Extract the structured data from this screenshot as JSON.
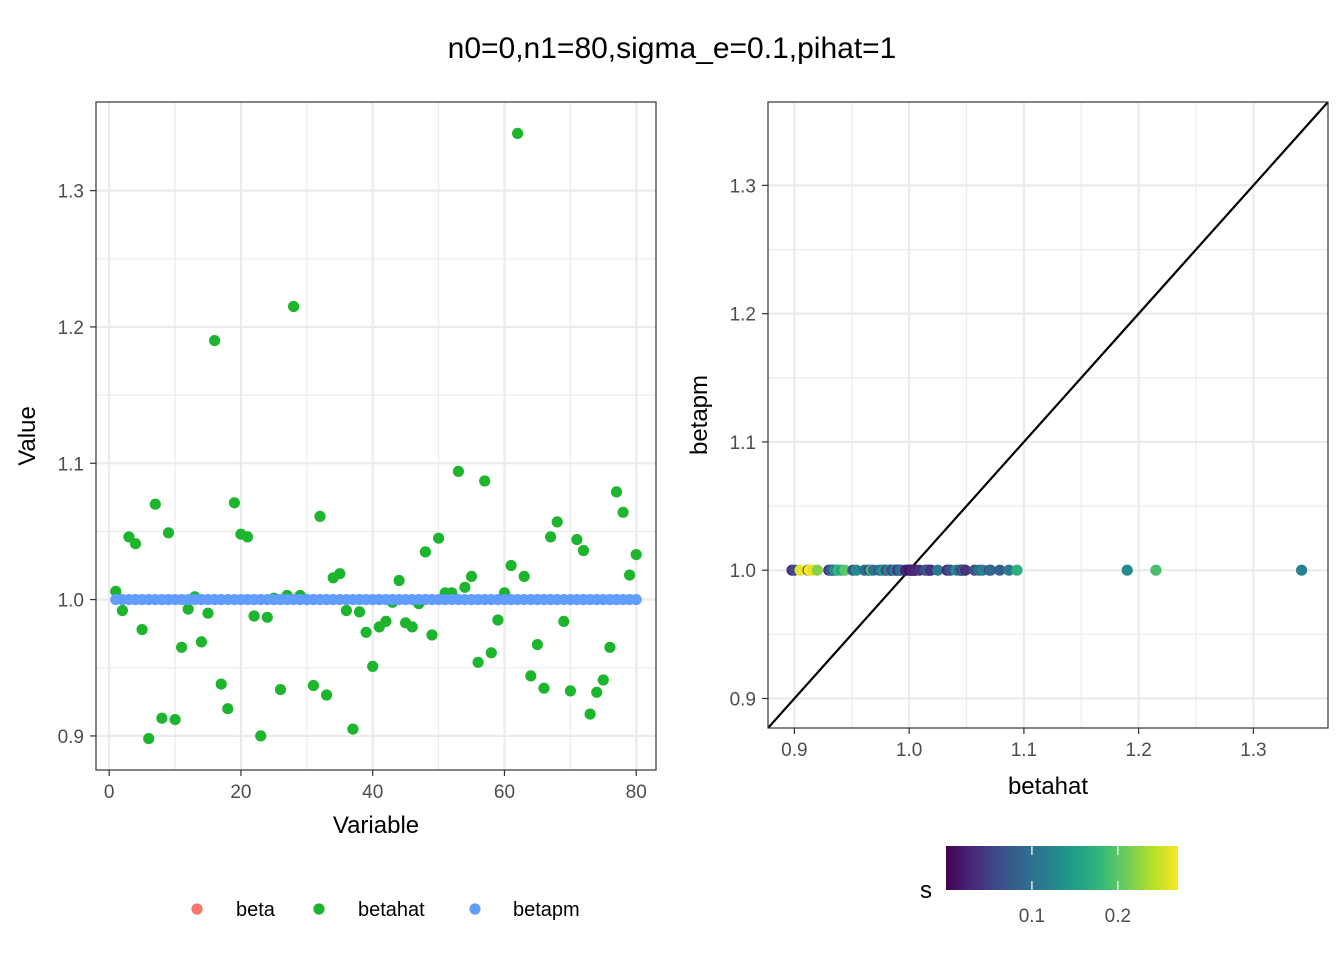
{
  "title": "n0=0,n1=80,sigma_e=0.1,pihat=1",
  "colors": {
    "beta": "#F8766D",
    "betahat": "#1DB52D",
    "betapm": "#619CFF",
    "grid": "#EBEBEB",
    "panel_border": "#333333",
    "viridis": [
      "#440154",
      "#482878",
      "#3E4A89",
      "#31688E",
      "#26828E",
      "#1F9E89",
      "#35B779",
      "#6DCD59",
      "#B4DE2C",
      "#FDE725"
    ]
  },
  "chart_data": [
    {
      "type": "scatter",
      "xlabel": "Variable",
      "ylabel": "Value",
      "xlim": [
        -2,
        83
      ],
      "ylim": [
        0.875,
        1.365
      ],
      "x_ticks": [
        0,
        20,
        40,
        60,
        80
      ],
      "y_ticks": [
        0.9,
        1.0,
        1.1,
        1.2,
        1.3
      ],
      "x_tick_labels": [
        "0",
        "20",
        "40",
        "60",
        "80"
      ],
      "y_tick_labels": [
        "0.9",
        "1.0",
        "1.1",
        "1.2",
        "1.3"
      ],
      "legend": {
        "position": "bottom",
        "entries": [
          {
            "key": "beta",
            "label": "beta"
          },
          {
            "key": "betahat",
            "label": "betahat"
          },
          {
            "key": "betapm",
            "label": "betapm"
          }
        ]
      },
      "series": [
        {
          "name": "betahat",
          "x": [
            1,
            2,
            3,
            4,
            5,
            6,
            7,
            8,
            9,
            10,
            11,
            12,
            13,
            14,
            15,
            16,
            17,
            18,
            19,
            20,
            21,
            22,
            23,
            24,
            25,
            26,
            27,
            28,
            29,
            30,
            31,
            32,
            33,
            34,
            35,
            36,
            37,
            38,
            39,
            40,
            41,
            42,
            43,
            44,
            45,
            46,
            47,
            48,
            49,
            50,
            51,
            52,
            53,
            54,
            55,
            56,
            57,
            58,
            59,
            60,
            61,
            62,
            63,
            64,
            65,
            66,
            67,
            68,
            69,
            70,
            71,
            72,
            73,
            74,
            75,
            76,
            77,
            78,
            79,
            80
          ],
          "values": [
            1.006,
            0.992,
            1.046,
            1.041,
            0.978,
            0.898,
            1.07,
            0.913,
            1.049,
            0.912,
            0.965,
            0.993,
            1.002,
            0.969,
            0.99,
            1.19,
            0.938,
            0.92,
            1.071,
            1.048,
            1.046,
            0.988,
            0.9,
            0.987,
            1.001,
            0.934,
            1.003,
            1.215,
            1.003,
            1.0,
            0.937,
            1.061,
            0.93,
            1.016,
            1.019,
            0.992,
            0.905,
            0.991,
            0.976,
            0.951,
            0.98,
            0.984,
            0.998,
            1.014,
            0.983,
            0.98,
            0.997,
            1.035,
            0.974,
            1.045,
            1.005,
            1.005,
            1.094,
            1.009,
            1.017,
            0.954,
            1.087,
            0.961,
            0.985,
            1.005,
            1.025,
            1.342,
            1.017,
            0.944,
            0.967,
            0.935,
            1.046,
            1.057,
            0.984,
            0.933,
            1.044,
            1.036,
            0.916,
            0.932,
            0.941,
            0.965,
            1.079,
            1.064,
            1.018,
            1.033
          ]
        },
        {
          "name": "betapm",
          "x": [
            1,
            2,
            3,
            4,
            5,
            6,
            7,
            8,
            9,
            10,
            11,
            12,
            13,
            14,
            15,
            16,
            17,
            18,
            19,
            20,
            21,
            22,
            23,
            24,
            25,
            26,
            27,
            28,
            29,
            30,
            31,
            32,
            33,
            34,
            35,
            36,
            37,
            38,
            39,
            40,
            41,
            42,
            43,
            44,
            45,
            46,
            47,
            48,
            49,
            50,
            51,
            52,
            53,
            54,
            55,
            56,
            57,
            58,
            59,
            60,
            61,
            62,
            63,
            64,
            65,
            66,
            67,
            68,
            69,
            70,
            71,
            72,
            73,
            74,
            75,
            76,
            77,
            78,
            79,
            80
          ],
          "values": [
            1.0,
            1.0,
            1.0,
            1.0,
            1.0,
            1.0,
            1.0,
            1.0,
            1.0,
            1.0,
            1.0,
            1.0,
            1.0,
            1.0,
            1.0,
            1.0,
            1.0,
            1.0,
            1.0,
            1.0,
            1.0,
            1.0,
            1.0,
            1.0,
            1.0,
            1.0,
            1.0,
            1.0,
            1.0,
            1.0,
            1.0,
            1.0,
            1.0,
            1.0,
            1.0,
            1.0,
            1.0,
            1.0,
            1.0,
            1.0,
            1.0,
            1.0,
            1.0,
            1.0,
            1.0,
            1.0,
            1.0,
            1.0,
            1.0,
            1.0,
            1.0,
            1.0,
            1.0,
            1.0,
            1.0,
            1.0,
            1.0,
            1.0,
            1.0,
            1.0,
            1.0,
            1.0,
            1.0,
            1.0,
            1.0,
            1.0,
            1.0,
            1.0,
            1.0,
            1.0,
            1.0,
            1.0,
            1.0,
            1.0,
            1.0,
            1.0,
            1.0,
            1.0,
            1.0,
            1.0
          ]
        }
      ]
    },
    {
      "type": "scatter",
      "xlabel": "betahat",
      "ylabel": "betapm",
      "xlim": [
        0.877,
        1.365
      ],
      "ylim": [
        0.877,
        1.365
      ],
      "x_ticks": [
        0.9,
        1.0,
        1.1,
        1.2,
        1.3
      ],
      "y_ticks": [
        0.9,
        1.0,
        1.1,
        1.2,
        1.3
      ],
      "x_tick_labels": [
        "0.9",
        "1.0",
        "1.1",
        "1.2",
        "1.3"
      ],
      "y_tick_labels": [
        "0.9",
        "1.0",
        "1.1",
        "1.2",
        "1.3"
      ],
      "reference_line": "y = x",
      "colorbar": {
        "title": "s",
        "position": "bottom",
        "range": [
          0.0,
          0.27
        ],
        "ticks": [
          0.1,
          0.2
        ],
        "tick_labels": [
          "0.1",
          "0.2"
        ]
      },
      "points": {
        "x": [
          0.898,
          0.9,
          0.905,
          0.912,
          0.913,
          0.916,
          0.92,
          0.93,
          0.932,
          0.933,
          0.934,
          0.935,
          0.937,
          0.938,
          0.941,
          0.944,
          0.951,
          0.954,
          0.961,
          0.965,
          0.965,
          0.967,
          0.969,
          0.974,
          0.976,
          0.978,
          0.98,
          0.98,
          0.983,
          0.984,
          0.984,
          0.985,
          0.987,
          0.988,
          0.99,
          0.991,
          0.992,
          0.992,
          0.993,
          0.997,
          0.998,
          1.0,
          1.001,
          1.002,
          1.003,
          1.003,
          1.005,
          1.005,
          1.005,
          1.006,
          1.009,
          1.014,
          1.016,
          1.017,
          1.017,
          1.018,
          1.019,
          1.025,
          1.033,
          1.035,
          1.036,
          1.041,
          1.044,
          1.045,
          1.046,
          1.046,
          1.046,
          1.048,
          1.049,
          1.057,
          1.061,
          1.064,
          1.07,
          1.071,
          1.079,
          1.087,
          1.094,
          1.19,
          1.215,
          1.342
        ],
        "y": [
          1.0,
          1.0,
          1.0,
          1.0,
          1.0,
          1.0,
          1.0,
          1.0,
          1.0,
          1.0,
          1.0,
          1.0,
          1.0,
          1.0,
          1.0,
          1.0,
          1.0,
          1.0,
          1.0,
          1.0,
          1.0,
          1.0,
          1.0,
          1.0,
          1.0,
          1.0,
          1.0,
          1.0,
          1.0,
          1.0,
          1.0,
          1.0,
          1.0,
          1.0,
          1.0,
          1.0,
          1.0,
          1.0,
          1.0,
          1.0,
          1.0,
          1.0,
          1.0,
          1.0,
          1.0,
          1.0,
          1.0,
          1.0,
          1.0,
          1.0,
          1.0,
          1.0,
          1.0,
          1.0,
          1.0,
          1.0,
          1.0,
          1.0,
          1.0,
          1.0,
          1.0,
          1.0,
          1.0,
          1.0,
          1.0,
          1.0,
          1.0,
          1.0,
          1.0,
          1.0,
          1.0,
          1.0,
          1.0,
          1.0,
          1.0,
          1.0,
          1.0,
          1.0,
          1.0,
          1.0
        ],
        "s": [
          0.03,
          0.06,
          0.26,
          0.05,
          0.27,
          0.26,
          0.22,
          0.04,
          0.08,
          0.12,
          0.05,
          0.15,
          0.09,
          0.18,
          0.16,
          0.2,
          0.07,
          0.13,
          0.1,
          0.14,
          0.06,
          0.19,
          0.1,
          0.08,
          0.12,
          0.15,
          0.05,
          0.07,
          0.16,
          0.09,
          0.11,
          0.06,
          0.08,
          0.12,
          0.03,
          0.05,
          0.04,
          0.07,
          0.1,
          0.02,
          0.03,
          0.01,
          0.02,
          0.01,
          0.02,
          0.03,
          0.01,
          0.02,
          0.02,
          0.03,
          0.04,
          0.06,
          0.08,
          0.05,
          0.09,
          0.06,
          0.04,
          0.11,
          0.03,
          0.05,
          0.07,
          0.14,
          0.08,
          0.1,
          0.12,
          0.05,
          0.06,
          0.09,
          0.04,
          0.07,
          0.1,
          0.12,
          0.06,
          0.09,
          0.08,
          0.11,
          0.17,
          0.13,
          0.19,
          0.12
        ]
      }
    }
  ]
}
